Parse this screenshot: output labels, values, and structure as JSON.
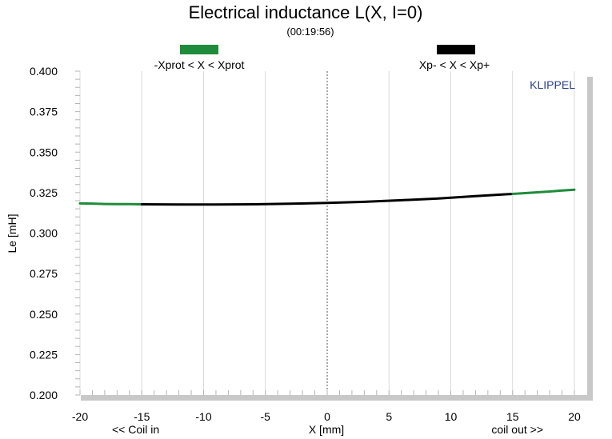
{
  "chart_data": {
    "type": "line",
    "title": "Electrical inductance L(X, I=0)",
    "subtitle": "(00:19:56)",
    "xlabel": "X [mm]",
    "ylabel": "Le [mH]",
    "x_left_note": "<< Coil in",
    "x_right_note": "coil out >>",
    "brand": "KLIPPEL",
    "xlim": [
      -20,
      20
    ],
    "ylim": [
      0.2,
      0.4
    ],
    "xticks": [
      "-20",
      "-15",
      "-10",
      "-5",
      "0",
      "5",
      "10",
      "15",
      "20"
    ],
    "yticks": [
      "0.200",
      "0.225",
      "0.250",
      "0.275",
      "0.300",
      "0.325",
      "0.350",
      "0.375",
      "0.400"
    ],
    "grid": true,
    "legend_position": "top",
    "series": [
      {
        "name": "-Xprot < X < Xprot",
        "color": "#1e8c3a",
        "x": [
          -20,
          -19,
          -18,
          -17,
          -16,
          -15
        ],
        "y": [
          0.3183,
          0.3182,
          0.318,
          0.3179,
          0.3179,
          0.3178
        ]
      },
      {
        "name": "Xp- < X < Xp+",
        "color": "#000000",
        "x": [
          -15,
          -12,
          -9,
          -6,
          -3,
          0,
          3,
          6,
          9,
          12,
          15
        ],
        "y": [
          0.3178,
          0.3177,
          0.3177,
          0.3178,
          0.3181,
          0.3186,
          0.3193,
          0.3203,
          0.3214,
          0.3228,
          0.3242
        ]
      },
      {
        "name": "",
        "color": "#1e8c3a",
        "x": [
          15,
          16,
          17,
          18,
          19,
          20
        ],
        "y": [
          0.3242,
          0.3247,
          0.3252,
          0.3257,
          0.3263,
          0.3268
        ]
      }
    ]
  }
}
